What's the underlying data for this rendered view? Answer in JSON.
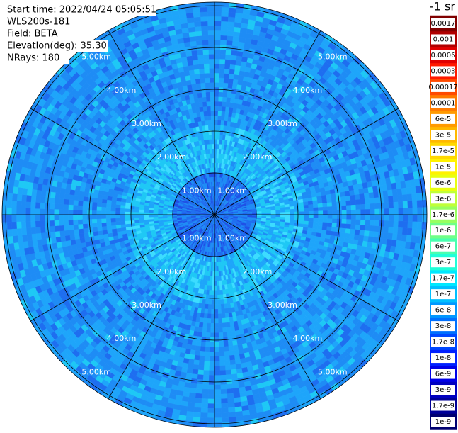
{
  "header": {
    "lines": [
      "Start time: 2022/04/24 05:05:51",
      "WLS200s-181",
      "Field: BETA",
      "Elevation(deg): 35.30",
      "NRays: 180"
    ]
  },
  "range_labels": [
    "1.00km",
    "2.00km",
    "3.00km",
    "4.00km",
    "5.00km"
  ],
  "colorbar": {
    "unit": "-1 sr",
    "labels": [
      "0.0017",
      "0.001",
      "0.0006",
      "0.0003",
      "0.00017",
      "0.0001",
      "6e-5",
      "3e-5",
      "1.7e-5",
      "1e-5",
      "6e-6",
      "3e-6",
      "1.7e-6",
      "1e-6",
      "6e-7",
      "3e-7",
      "1.7e-7",
      "1e-7",
      "6e-8",
      "3e-8",
      "1.7e-8",
      "1e-8",
      "6e-9",
      "3e-9",
      "1.7e-9",
      "1e-9"
    ],
    "colors": [
      "#800000",
      "#b00000",
      "#e00000",
      "#ff1a00",
      "#ff4a00",
      "#ff7a00",
      "#ff9a00",
      "#ffb800",
      "#ffd800",
      "#fff200",
      "#e8ff10",
      "#c0ff38",
      "#98ff60",
      "#70ff88",
      "#48ffb0",
      "#20ffd8",
      "#00e8ff",
      "#00c0ff",
      "#0098ff",
      "#0070ff",
      "#0048ff",
      "#0020ff",
      "#0000e8",
      "#0000c0",
      "#000098",
      "#000070"
    ]
  }
}
